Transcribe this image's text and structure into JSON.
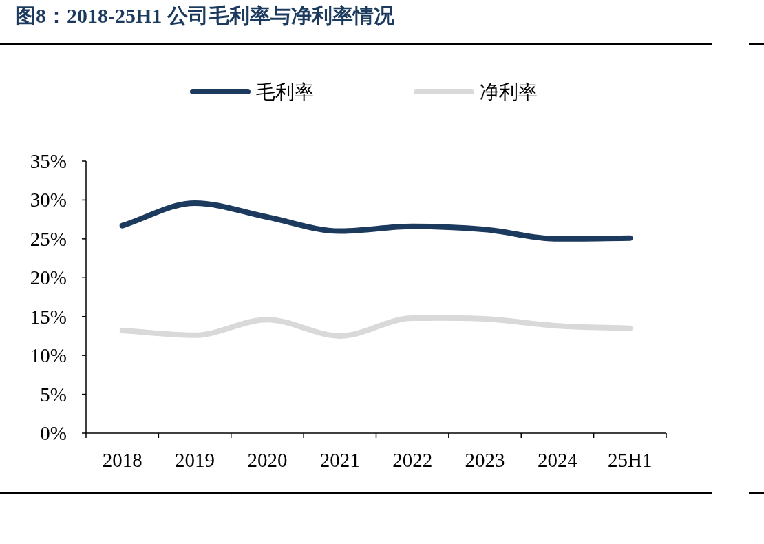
{
  "chart_data": {
    "type": "line",
    "title": "图8：2018-25H1 公司毛利率与净利率情况",
    "categories": [
      "2018",
      "2019",
      "2020",
      "2021",
      "2022",
      "2023",
      "2024",
      "25H1"
    ],
    "series": [
      {
        "name": "毛利率",
        "color": "#1b3a5e",
        "values": [
          26.7,
          29.6,
          27.8,
          26.0,
          26.6,
          26.2,
          25.0,
          25.1
        ]
      },
      {
        "name": "净利率",
        "color": "#d9d9d9",
        "values": [
          13.2,
          12.6,
          14.6,
          12.5,
          14.8,
          14.7,
          13.8,
          13.5
        ]
      }
    ],
    "ylim": [
      0,
      35
    ],
    "yticks": [
      {
        "value": 0,
        "label": "0%"
      },
      {
        "value": 5,
        "label": "5%"
      },
      {
        "value": 10,
        "label": "10%"
      },
      {
        "value": 15,
        "label": "15%"
      },
      {
        "value": 20,
        "label": "20%"
      },
      {
        "value": 25,
        "label": "25%"
      },
      {
        "value": 30,
        "label": "30%"
      },
      {
        "value": 35,
        "label": "35%"
      }
    ],
    "legend": "top"
  }
}
